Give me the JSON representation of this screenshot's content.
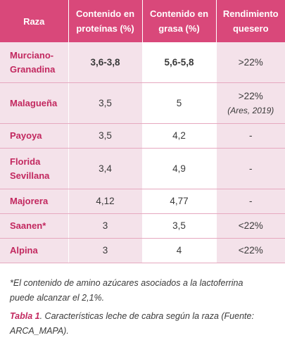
{
  "table": {
    "headers": {
      "raza": "Raza",
      "proteinas_l1": "Contenido en",
      "proteinas_l2": "proteínas (%)",
      "grasa_l1": "Contenido en",
      "grasa_l2": "grasa (%)",
      "rend_l1": "Rendimiento",
      "rend_l2": "quesero"
    },
    "rows": [
      {
        "raza_l1": "Murciano-",
        "raza_l2": "Granadina",
        "proteinas": "3,6-3,8",
        "grasa": "5,6-5,8",
        "rendimiento": ">22%",
        "ref": ""
      },
      {
        "raza_l1": "Malagueña",
        "raza_l2": "",
        "proteinas": "3,5",
        "grasa": "5",
        "rendimiento": ">22%",
        "ref": "(Ares, 2019)"
      },
      {
        "raza_l1": "Payoya",
        "raza_l2": "",
        "proteinas": "3,5",
        "grasa": "4,2",
        "rendimiento": "-",
        "ref": ""
      },
      {
        "raza_l1": "Florida",
        "raza_l2": "Sevillana",
        "proteinas": "3,4",
        "grasa": "4,9",
        "rendimiento": "-",
        "ref": ""
      },
      {
        "raza_l1": "Majorera",
        "raza_l2": "",
        "proteinas": "4,12",
        "grasa": "4,77",
        "rendimiento": "-",
        "ref": ""
      },
      {
        "raza_l1": "Saanen*",
        "raza_l2": "",
        "proteinas": "3",
        "grasa": "3,5",
        "rendimiento": "<22%",
        "ref": ""
      },
      {
        "raza_l1": "Alpina",
        "raza_l2": "",
        "proteinas": "3",
        "grasa": "4",
        "rendimiento": "<22%",
        "ref": ""
      }
    ]
  },
  "footnote_l1": "*El contenido de amino azúcares asociados a la lactoferrina",
  "footnote_l2": "puede alcanzar el 2,1%.",
  "caption": {
    "label": "Tabla 1",
    "text_l1": ". Características leche de cabra según la raza (Fuente:",
    "text_l2": "ARCA_MAPA)."
  }
}
